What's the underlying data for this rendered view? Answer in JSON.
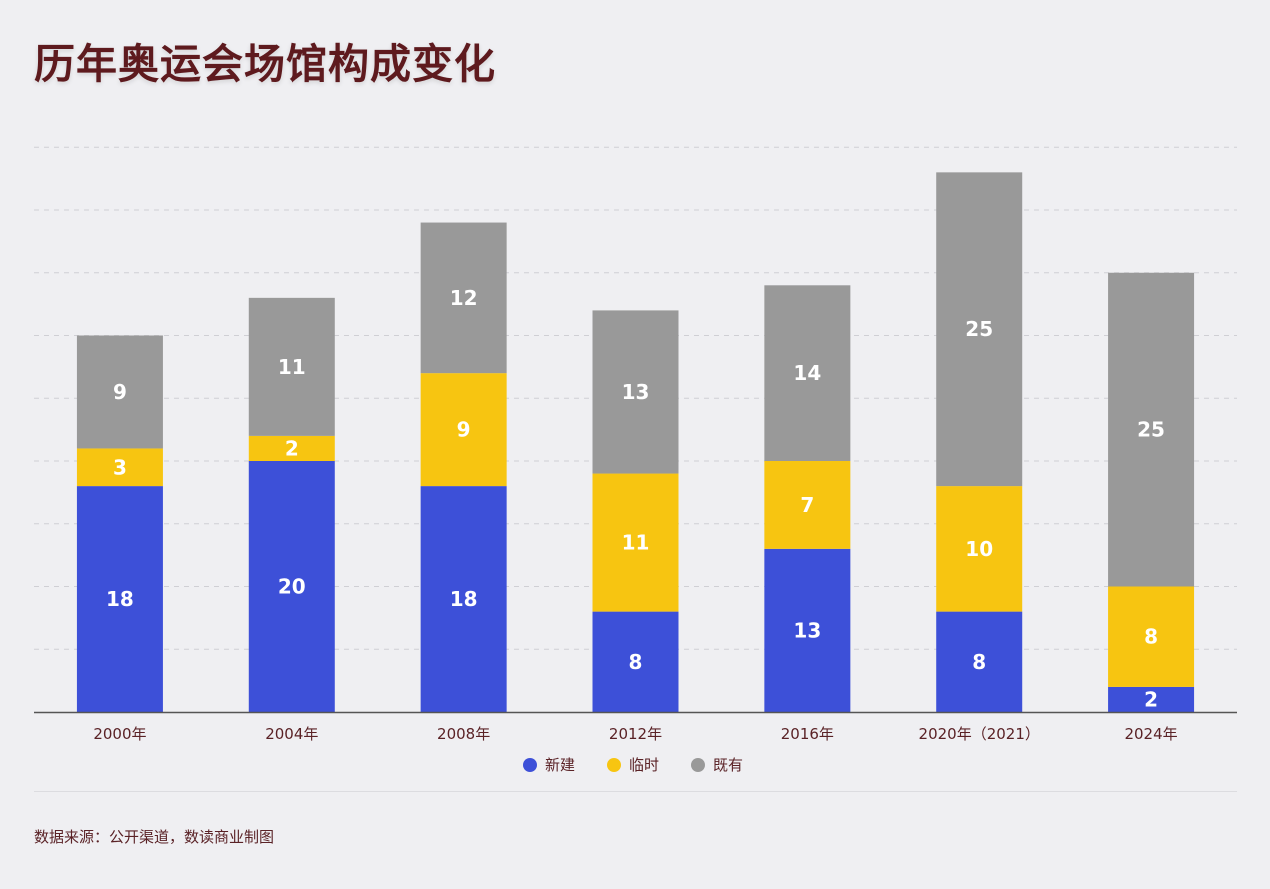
{
  "title": "历年奥运会场馆构成变化",
  "source": "数据来源：公开渠道，数读商业制图",
  "colors": {
    "background": "#efeff2",
    "title": "#5e1a1e",
    "axis_text": "#5a2226",
    "grid": "#cfcfd4"
  },
  "chart_data": {
    "type": "bar",
    "stacked": true,
    "categories": [
      "2000年",
      "2004年",
      "2008年",
      "2012年",
      "2016年",
      "2020年（2021）",
      "2024年"
    ],
    "series": [
      {
        "name": "新建",
        "color": "#3d50d8",
        "values": [
          18,
          20,
          18,
          8,
          13,
          8,
          2
        ]
      },
      {
        "name": "临时",
        "color": "#f7c511",
        "values": [
          3,
          2,
          9,
          11,
          7,
          10,
          8
        ]
      },
      {
        "name": "既有",
        "color": "#999999",
        "values": [
          9,
          11,
          12,
          13,
          14,
          25,
          25
        ]
      }
    ],
    "ylim": [
      0,
      45
    ],
    "grid": true,
    "data_labels": true,
    "legend_position": "bottom-center"
  }
}
